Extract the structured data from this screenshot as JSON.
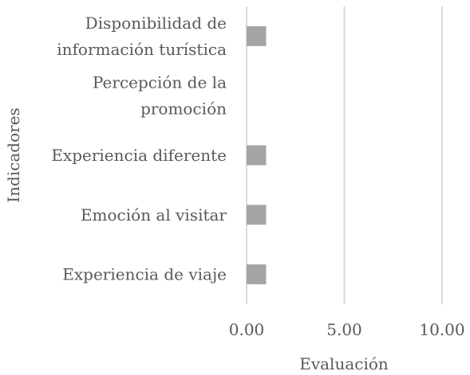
{
  "chart_data": {
    "type": "bar",
    "orientation": "horizontal",
    "categories": [
      [
        "Disponibilidad de",
        "información turística"
      ],
      [
        "Percepción de la",
        "promoción"
      ],
      [
        "Experiencia diferente"
      ],
      [
        "Emoción al visitar"
      ],
      [
        "Experiencia de viaje"
      ]
    ],
    "values": [
      1,
      0,
      1,
      1,
      1
    ],
    "xlabel": "Evaluación",
    "ylabel": "Indicadores",
    "xlim": [
      0,
      10
    ],
    "xticks": [
      "0.00",
      "5.00",
      "10.00"
    ],
    "xtick_values": [
      0,
      5,
      10
    ],
    "grid": "vertical",
    "bar_color": "#a5a5a5",
    "grid_color": "#d9d9d9"
  }
}
